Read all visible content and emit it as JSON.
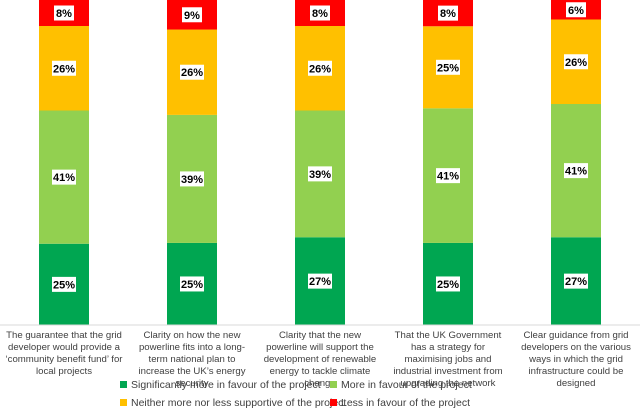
{
  "chart_data": {
    "type": "bar",
    "stacked": true,
    "normalized": true,
    "categories": [
      "The guarantee that the grid developer would provide a ‘community benefit fund’ for local projects",
      "Clarity on how the new powerline fits into a long-term national plan to increase the UK’s energy security",
      "Clarity that the new powerline will support the development of renewable energy to tackle climate change",
      "That the UK Government has a strategy for maximising jobs and industrial investment from upgrading the network",
      "Clear guidance from grid developers on the various ways in which the grid infrastructure could be designed"
    ],
    "series": [
      {
        "name": "Significantly more in favour of the project",
        "color": "#00a651",
        "values": [
          25,
          25,
          27,
          25,
          27
        ]
      },
      {
        "name": "More in favour of the project",
        "color": "#92d050",
        "values": [
          41,
          39,
          39,
          41,
          41
        ]
      },
      {
        "name": "Neither more nor less supportive of the project",
        "color": "#ffc000",
        "values": [
          26,
          26,
          26,
          25,
          26
        ]
      },
      {
        "name": "Less in favour of the project",
        "color": "#ff0000",
        "values": [
          8,
          9,
          8,
          8,
          6
        ]
      }
    ],
    "data_labels": [
      [
        "25%",
        "25%",
        "27%",
        "25%",
        "27%"
      ],
      [
        "41%",
        "39%",
        "39%",
        "41%",
        "41%"
      ],
      [
        "26%",
        "26%",
        "26%",
        "25%",
        "26%"
      ],
      [
        "8%",
        "9%",
        "8%",
        "8%",
        "6%"
      ]
    ],
    "legend_position": "bottom",
    "grid": false
  }
}
